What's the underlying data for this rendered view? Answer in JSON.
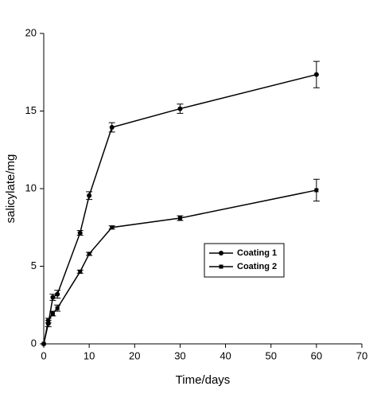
{
  "chart_data": {
    "type": "line",
    "x_label": "Time/days",
    "y_label": "salicylate/mg",
    "xlim": [
      0,
      70
    ],
    "xticks": [
      0,
      10,
      20,
      30,
      40,
      50,
      60,
      70
    ],
    "ylim": [
      0,
      20
    ],
    "yticks": [
      0,
      5,
      10,
      15,
      20
    ],
    "legend": "center-right",
    "series": [
      {
        "name": "Coating 1",
        "color": "#000000",
        "marker": "circle",
        "x": [
          0,
          1,
          2,
          3,
          8,
          10,
          15,
          30,
          60
        ],
        "values": [
          0,
          1.3,
          3.0,
          3.2,
          7.15,
          9.55,
          13.95,
          15.15,
          17.35
        ],
        "errors": [
          0,
          0.2,
          0.2,
          0.25,
          0.15,
          0.25,
          0.3,
          0.3,
          0.85
        ]
      },
      {
        "name": "Coating 2",
        "color": "#000000",
        "marker": "square",
        "x": [
          0,
          1,
          2,
          3,
          8,
          10,
          15,
          30,
          60
        ],
        "values": [
          0,
          1.5,
          1.95,
          2.3,
          4.65,
          5.8,
          7.5,
          8.1,
          9.9
        ],
        "errors": [
          0,
          0.15,
          0.15,
          0.2,
          0.1,
          0.1,
          0.1,
          0.15,
          0.7
        ]
      }
    ]
  }
}
